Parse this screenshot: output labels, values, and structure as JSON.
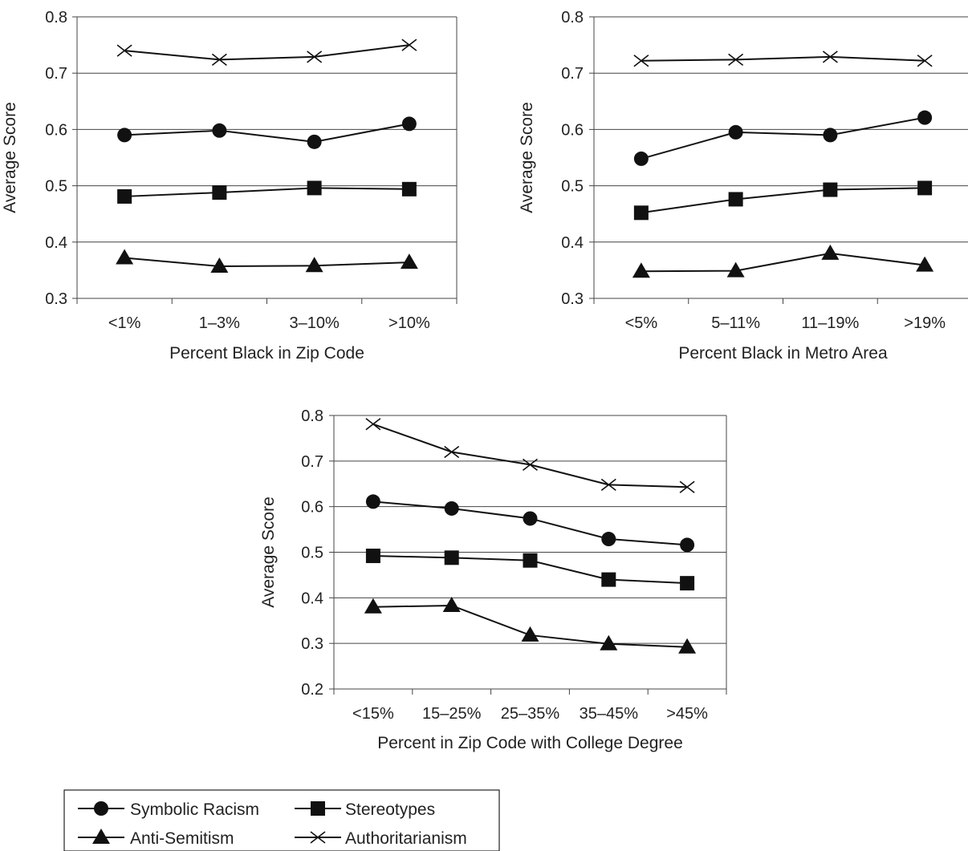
{
  "chart_data": [
    {
      "type": "line",
      "xlabel": "Percent Black in Zip Code",
      "ylabel": "Average Score",
      "ylim": [
        0.3,
        0.8
      ],
      "yticks": [
        "0.3",
        "0.4",
        "0.5",
        "0.6",
        "0.7",
        "0.8"
      ],
      "grid": "horizontal",
      "categories": [
        "<1%",
        "1–3%",
        "3–10%",
        ">10%"
      ],
      "series": [
        {
          "name": "Symbolic Racism",
          "marker": "circle",
          "values": [
            0.59,
            0.598,
            0.578,
            0.61
          ]
        },
        {
          "name": "Stereotypes",
          "marker": "square",
          "values": [
            0.481,
            0.488,
            0.496,
            0.494
          ]
        },
        {
          "name": "Anti-Semitism",
          "marker": "triangle",
          "values": [
            0.372,
            0.357,
            0.358,
            0.364
          ]
        },
        {
          "name": "Authoritarianism",
          "marker": "x",
          "values": [
            0.74,
            0.724,
            0.729,
            0.75
          ]
        }
      ]
    },
    {
      "type": "line",
      "xlabel": "Percent Black in Metro Area",
      "ylabel": "Average Score",
      "ylim": [
        0.3,
        0.8
      ],
      "yticks": [
        "0.3",
        "0.4",
        "0.5",
        "0.6",
        "0.7",
        "0.8"
      ],
      "grid": "horizontal",
      "categories": [
        "<5%",
        "5–11%",
        "11–19%",
        ">19%"
      ],
      "series": [
        {
          "name": "Symbolic Racism",
          "marker": "circle",
          "values": [
            0.548,
            0.595,
            0.59,
            0.621
          ]
        },
        {
          "name": "Stereotypes",
          "marker": "square",
          "values": [
            0.452,
            0.476,
            0.493,
            0.496
          ]
        },
        {
          "name": "Anti-Semitism",
          "marker": "triangle",
          "values": [
            0.348,
            0.349,
            0.38,
            0.359
          ]
        },
        {
          "name": "Authoritarianism",
          "marker": "x",
          "values": [
            0.722,
            0.724,
            0.729,
            0.722
          ]
        }
      ]
    },
    {
      "type": "line",
      "xlabel": "Percent in Zip Code with College Degree",
      "ylabel": "Average Score",
      "ylim": [
        0.2,
        0.8
      ],
      "yticks": [
        "0.2",
        "0.3",
        "0.4",
        "0.5",
        "0.6",
        "0.7",
        "0.8"
      ],
      "grid": "horizontal",
      "categories": [
        "<15%",
        "15–25%",
        "25–35%",
        "35–45%",
        ">45%"
      ],
      "series": [
        {
          "name": "Symbolic Racism",
          "marker": "circle",
          "values": [
            0.611,
            0.596,
            0.574,
            0.529,
            0.516
          ]
        },
        {
          "name": "Stereotypes",
          "marker": "square",
          "values": [
            0.492,
            0.488,
            0.482,
            0.44,
            0.432
          ]
        },
        {
          "name": "Anti-Semitism",
          "marker": "triangle",
          "values": [
            0.38,
            0.383,
            0.318,
            0.299,
            0.292
          ]
        },
        {
          "name": "Authoritarianism",
          "marker": "x",
          "values": [
            0.781,
            0.72,
            0.692,
            0.648,
            0.643
          ]
        }
      ]
    }
  ],
  "legend": {
    "placement": "bottom-left",
    "items": [
      {
        "name": "Symbolic Racism",
        "marker": "circle"
      },
      {
        "name": "Stereotypes",
        "marker": "square"
      },
      {
        "name": "Anti-Semitism",
        "marker": "triangle"
      },
      {
        "name": "Authoritarianism",
        "marker": "x"
      }
    ]
  }
}
